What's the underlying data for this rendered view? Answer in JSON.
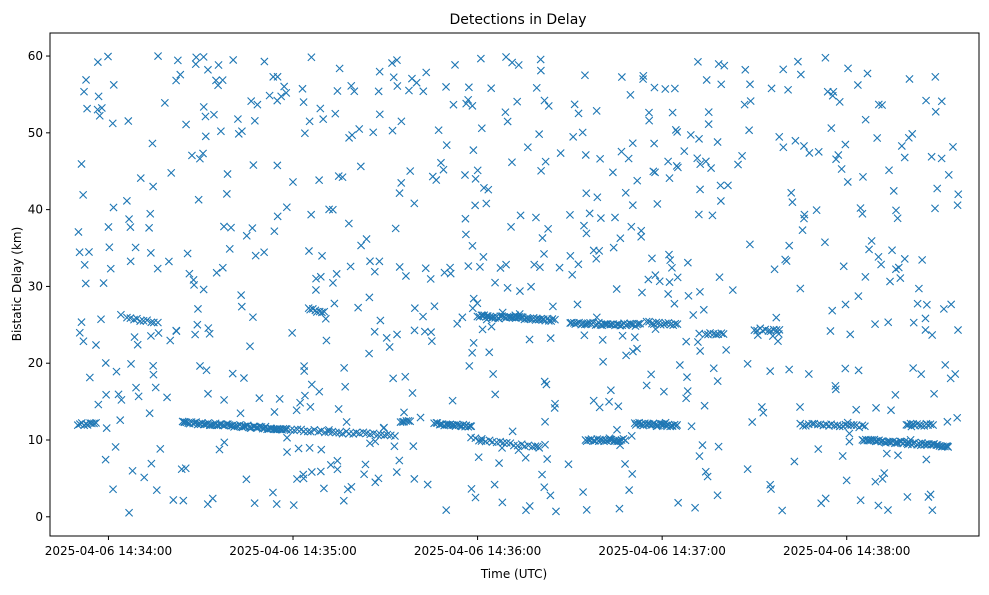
{
  "chart_data": {
    "type": "scatter",
    "title": "Detections in Delay",
    "xlabel": "Time (UTC)",
    "ylabel": "Bistatic Delay (km)",
    "marker": "x",
    "color": "#1f77b4",
    "grid": false,
    "legend": "none",
    "x_axis": {
      "kind": "time",
      "min": "2025-04-06 14:33:41",
      "max": "2025-04-06 14:38:43",
      "ticks": [
        "2025-04-06 14:34:00",
        "2025-04-06 14:35:00",
        "2025-04-06 14:36:00",
        "2025-04-06 14:37:00",
        "2025-04-06 14:38:00"
      ]
    },
    "y_axis": {
      "min": -2.5,
      "max": 63,
      "ticks": [
        0,
        10,
        20,
        30,
        40,
        50,
        60
      ]
    },
    "tracks": [
      {
        "start": "2025-04-06 14:33:50",
        "end": "2025-04-06 14:33:56",
        "delay_start": 12.1,
        "delay_end": 12.1,
        "count": 10
      },
      {
        "start": "2025-04-06 14:34:06",
        "end": "2025-04-06 14:34:16",
        "delay_start": 25.8,
        "delay_end": 25.4,
        "count": 10
      },
      {
        "start": "2025-04-06 14:34:24",
        "end": "2025-04-06 14:34:58",
        "delay_start": 12.3,
        "delay_end": 11.4,
        "count": 70
      },
      {
        "start": "2025-04-06 14:34:58",
        "end": "2025-04-06 14:35:33",
        "delay_start": 11.4,
        "delay_end": 10.6,
        "count": 32
      },
      {
        "start": "2025-04-06 14:35:05",
        "end": "2025-04-06 14:35:10",
        "delay_start": 27.0,
        "delay_end": 26.7,
        "count": 8
      },
      {
        "start": "2025-04-06 14:35:35",
        "end": "2025-04-06 14:35:38",
        "delay_start": 12.4,
        "delay_end": 12.3,
        "count": 6
      },
      {
        "start": "2025-04-06 14:35:46",
        "end": "2025-04-06 14:35:58",
        "delay_start": 12.1,
        "delay_end": 11.8,
        "count": 24
      },
      {
        "start": "2025-04-06 14:35:58",
        "end": "2025-04-06 14:36:20",
        "delay_start": 10.2,
        "delay_end": 9.0,
        "count": 20
      },
      {
        "start": "2025-04-06 14:36:00",
        "end": "2025-04-06 14:36:25",
        "delay_start": 26.2,
        "delay_end": 25.6,
        "count": 45
      },
      {
        "start": "2025-04-06 14:36:30",
        "end": "2025-04-06 14:36:53",
        "delay_start": 25.2,
        "delay_end": 25.0,
        "count": 40
      },
      {
        "start": "2025-04-06 14:36:35",
        "end": "2025-04-06 14:36:48",
        "delay_start": 10.0,
        "delay_end": 10.0,
        "count": 25
      },
      {
        "start": "2025-04-06 14:36:51",
        "end": "2025-04-06 14:37:05",
        "delay_start": 12.1,
        "delay_end": 11.9,
        "count": 30
      },
      {
        "start": "2025-04-06 14:36:55",
        "end": "2025-04-06 14:37:05",
        "delay_start": 25.3,
        "delay_end": 25.0,
        "count": 14
      },
      {
        "start": "2025-04-06 14:37:14",
        "end": "2025-04-06 14:37:20",
        "delay_start": 23.9,
        "delay_end": 23.9,
        "count": 8
      },
      {
        "start": "2025-04-06 14:37:30",
        "end": "2025-04-06 14:37:38",
        "delay_start": 24.4,
        "delay_end": 24.3,
        "count": 10
      },
      {
        "start": "2025-04-06 14:37:45",
        "end": "2025-04-06 14:38:06",
        "delay_start": 12.0,
        "delay_end": 11.8,
        "count": 24
      },
      {
        "start": "2025-04-06 14:38:05",
        "end": "2025-04-06 14:38:20",
        "delay_start": 10.0,
        "delay_end": 9.6,
        "count": 28
      },
      {
        "start": "2025-04-06 14:38:20",
        "end": "2025-04-06 14:38:33",
        "delay_start": 9.6,
        "delay_end": 9.2,
        "count": 24
      },
      {
        "start": "2025-04-06 14:38:20",
        "end": "2025-04-06 14:38:28",
        "delay_start": 12.0,
        "delay_end": 12.0,
        "count": 12
      }
    ],
    "clutter": {
      "start": "2025-04-06 14:33:50",
      "end": "2025-04-06 14:38:37",
      "delay_min": 0.5,
      "delay_max": 60,
      "count": 720
    }
  }
}
